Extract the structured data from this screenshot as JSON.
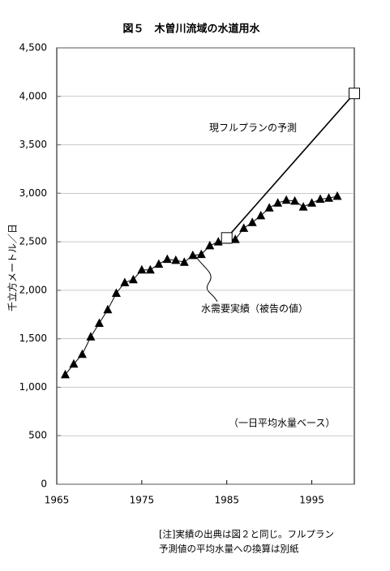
{
  "chart_data": {
    "type": "line",
    "title": "図５　木曽川流域の水道用水",
    "y_label": "千立方メートル／日",
    "xlim": [
      1965,
      2000
    ],
    "xticks": [
      1965,
      1975,
      1985,
      1995
    ],
    "ylim": [
      0,
      4500
    ],
    "yticks": [
      0,
      500,
      {
        "value": 1000,
        "label": "1,000"
      },
      {
        "value": 1500,
        "label": "1,500"
      },
      {
        "value": 2000,
        "label": "2,000"
      },
      {
        "value": 2500,
        "label": "2,500"
      },
      {
        "value": 3000,
        "label": "3,000"
      },
      {
        "value": 3500,
        "label": "3,500"
      },
      {
        "value": 4000,
        "label": "4,000"
      },
      {
        "value": 4500,
        "label": "4,500"
      }
    ],
    "series": [
      {
        "name": "水需要実績（被告の値）",
        "color": "#000000",
        "marker": "triangle",
        "x": [
          1966,
          1967,
          1968,
          1969,
          1970,
          1971,
          1972,
          1973,
          1974,
          1975,
          1976,
          1977,
          1978,
          1979,
          1980,
          1981,
          1982,
          1983,
          1984,
          1985,
          1986,
          1987,
          1988,
          1989,
          1990,
          1991,
          1992,
          1993,
          1994,
          1995,
          1996,
          1997,
          1998
        ],
        "values": [
          1130,
          1240,
          1340,
          1520,
          1660,
          1800,
          1970,
          2080,
          2110,
          2210,
          2210,
          2270,
          2320,
          2310,
          2290,
          2360,
          2370,
          2460,
          2500,
          2520,
          2525,
          2640,
          2700,
          2770,
          2850,
          2900,
          2930,
          2920,
          2860,
          2900,
          2940,
          2950,
          2970
        ]
      },
      {
        "name": "現フルプランの予測",
        "color": "#000000",
        "marker": "square",
        "x": [
          1985,
          2000
        ],
        "values": [
          2540,
          4030
        ]
      }
    ],
    "annotation": "（一日平均水量ベース）",
    "note": [
      "[注]実績の出典は図２と同じ。フルプラン",
      "予測値の平均水量への換算は別紙"
    ]
  }
}
